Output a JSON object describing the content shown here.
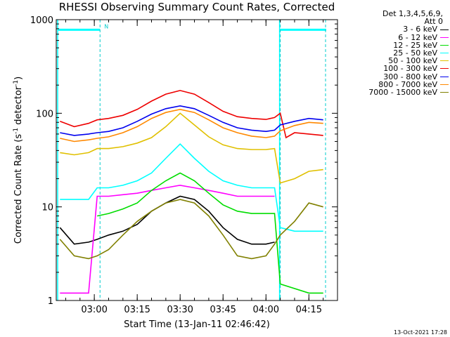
{
  "title": "RHESSI Observing Summary Count Rates, Corrected",
  "timestamp": "13-Oct-2021 17:28",
  "legend": {
    "header_lines": [
      "Det 1,3,4,5,6,9,",
      "Att 0"
    ]
  },
  "chart_data": {
    "type": "line",
    "title": "RHESSI Observing Summary Count Rates, Corrected",
    "xlabel": "Start Time (13-Jan-11 02:46:42)",
    "ylabel_base": "Corrected Count Rate (s",
    "ylabel_sup1": "-1",
    "ylabel_mid": " detector",
    "ylabel_sup2": "-1",
    "ylabel_end": ")",
    "ylabel": "Corrected Count Rate (s^-1 detector^-1)",
    "yscale": "log",
    "xlim": [
      "02:46:42",
      "04:25:00"
    ],
    "ylim": [
      1,
      1000
    ],
    "x_ticks": [
      "03:00",
      "03:15",
      "03:30",
      "03:45",
      "04:00",
      "04:15"
    ],
    "y_ticks": [
      "1",
      "10",
      "100",
      "1000"
    ],
    "flag_bar_marker": "N",
    "series": [
      {
        "name": "3 - 6 keV",
        "color": "#000000",
        "points": [
          [
            "02:48",
            6
          ],
          [
            "02:53",
            4
          ],
          [
            "02:58",
            4.2
          ],
          [
            "03:01",
            4.5
          ],
          [
            "03:05",
            5
          ],
          [
            "03:10",
            5.5
          ],
          [
            "03:15",
            6.5
          ],
          [
            "03:20",
            9
          ],
          [
            "03:25",
            11
          ],
          [
            "03:30",
            13
          ],
          [
            "03:35",
            12
          ],
          [
            "03:40",
            9
          ],
          [
            "03:45",
            6
          ],
          [
            "03:50",
            4.5
          ],
          [
            "03:55",
            4
          ],
          [
            "04:00",
            4
          ],
          [
            "04:03",
            4.2
          ]
        ]
      },
      {
        "name": "6 - 12 keV",
        "color": "#ff00ff",
        "points": [
          [
            "02:48",
            1.2
          ],
          [
            "02:53",
            1.2
          ],
          [
            "02:58",
            1.2
          ],
          [
            "03:01",
            13
          ],
          [
            "03:05",
            13
          ],
          [
            "03:10",
            13.5
          ],
          [
            "03:15",
            14
          ],
          [
            "03:20",
            15
          ],
          [
            "03:25",
            16
          ],
          [
            "03:30",
            17
          ],
          [
            "03:35",
            16
          ],
          [
            "03:40",
            15
          ],
          [
            "03:45",
            14
          ],
          [
            "03:50",
            13
          ],
          [
            "03:55",
            13
          ],
          [
            "04:00",
            13
          ],
          [
            "04:03",
            13
          ]
        ]
      },
      {
        "name": "12 - 25 keV",
        "color": "#00dd00",
        "points": [
          [
            "03:01",
            8
          ],
          [
            "03:05",
            8.5
          ],
          [
            "03:10",
            9.5
          ],
          [
            "03:15",
            11
          ],
          [
            "03:20",
            15
          ],
          [
            "03:25",
            19
          ],
          [
            "03:30",
            23
          ],
          [
            "03:35",
            19
          ],
          [
            "03:40",
            14
          ],
          [
            "03:45",
            10.5
          ],
          [
            "03:50",
            9
          ],
          [
            "03:55",
            8.5
          ],
          [
            "04:00",
            8.5
          ],
          [
            "04:03",
            8.5
          ],
          [
            "04:05",
            1.5
          ],
          [
            "04:15",
            1.2
          ],
          [
            "04:20",
            1.2
          ]
        ]
      },
      {
        "name": "25 - 50 keV",
        "color": "#00ffff",
        "points": [
          [
            "02:48",
            12
          ],
          [
            "02:53",
            12
          ],
          [
            "02:58",
            12
          ],
          [
            "03:01",
            16
          ],
          [
            "03:05",
            16
          ],
          [
            "03:10",
            17
          ],
          [
            "03:15",
            19
          ],
          [
            "03:20",
            23
          ],
          [
            "03:25",
            33
          ],
          [
            "03:30",
            47
          ],
          [
            "03:35",
            33
          ],
          [
            "03:40",
            24
          ],
          [
            "03:45",
            19
          ],
          [
            "03:50",
            17
          ],
          [
            "03:55",
            16
          ],
          [
            "04:00",
            16
          ],
          [
            "04:03",
            16
          ],
          [
            "04:05",
            6
          ],
          [
            "04:10",
            5.5
          ],
          [
            "04:15",
            5.5
          ],
          [
            "04:20",
            5.5
          ]
        ]
      },
      {
        "name": "50 - 100 keV",
        "color": "#e0c000",
        "points": [
          [
            "02:48",
            38
          ],
          [
            "02:53",
            36
          ],
          [
            "02:58",
            38
          ],
          [
            "03:01",
            42
          ],
          [
            "03:05",
            42
          ],
          [
            "03:10",
            44
          ],
          [
            "03:15",
            48
          ],
          [
            "03:20",
            55
          ],
          [
            "03:25",
            72
          ],
          [
            "03:30",
            100
          ],
          [
            "03:35",
            75
          ],
          [
            "03:40",
            56
          ],
          [
            "03:45",
            46
          ],
          [
            "03:50",
            42
          ],
          [
            "03:55",
            41
          ],
          [
            "04:00",
            41
          ],
          [
            "04:03",
            42
          ],
          [
            "04:05",
            18
          ],
          [
            "04:10",
            20
          ],
          [
            "04:15",
            24
          ],
          [
            "04:20",
            25
          ]
        ]
      },
      {
        "name": "100 - 300 keV",
        "color": "#ee0000",
        "points": [
          [
            "02:48",
            82
          ],
          [
            "02:53",
            72
          ],
          [
            "02:58",
            78
          ],
          [
            "03:01",
            85
          ],
          [
            "03:05",
            88
          ],
          [
            "03:10",
            95
          ],
          [
            "03:15",
            110
          ],
          [
            "03:20",
            135
          ],
          [
            "03:25",
            160
          ],
          [
            "03:30",
            175
          ],
          [
            "03:35",
            160
          ],
          [
            "03:40",
            130
          ],
          [
            "03:45",
            105
          ],
          [
            "03:50",
            92
          ],
          [
            "03:55",
            88
          ],
          [
            "04:00",
            86
          ],
          [
            "04:03",
            90
          ],
          [
            "04:05",
            100
          ],
          [
            "04:07",
            55
          ],
          [
            "04:10",
            62
          ],
          [
            "04:15",
            60
          ],
          [
            "04:20",
            58
          ]
        ]
      },
      {
        "name": "300 - 800 keV",
        "color": "#0000ee",
        "points": [
          [
            "02:48",
            62
          ],
          [
            "02:53",
            58
          ],
          [
            "02:58",
            60
          ],
          [
            "03:01",
            62
          ],
          [
            "03:05",
            64
          ],
          [
            "03:10",
            70
          ],
          [
            "03:15",
            82
          ],
          [
            "03:20",
            98
          ],
          [
            "03:25",
            112
          ],
          [
            "03:30",
            120
          ],
          [
            "03:35",
            112
          ],
          [
            "03:40",
            95
          ],
          [
            "03:45",
            80
          ],
          [
            "03:50",
            70
          ],
          [
            "03:55",
            66
          ],
          [
            "04:00",
            64
          ],
          [
            "04:03",
            66
          ],
          [
            "04:05",
            75
          ],
          [
            "04:10",
            82
          ],
          [
            "04:15",
            88
          ],
          [
            "04:20",
            85
          ]
        ]
      },
      {
        "name": "800 - 7000 keV",
        "color": "#ff8800",
        "points": [
          [
            "02:48",
            54
          ],
          [
            "02:53",
            50
          ],
          [
            "02:58",
            52
          ],
          [
            "03:01",
            54
          ],
          [
            "03:05",
            56
          ],
          [
            "03:10",
            62
          ],
          [
            "03:15",
            72
          ],
          [
            "03:20",
            88
          ],
          [
            "03:25",
            102
          ],
          [
            "03:30",
            110
          ],
          [
            "03:35",
            102
          ],
          [
            "03:40",
            85
          ],
          [
            "03:45",
            70
          ],
          [
            "03:50",
            62
          ],
          [
            "03:55",
            57
          ],
          [
            "04:00",
            55
          ],
          [
            "04:03",
            57
          ],
          [
            "04:05",
            65
          ],
          [
            "04:10",
            74
          ],
          [
            "04:15",
            80
          ],
          [
            "04:20",
            78
          ]
        ]
      },
      {
        "name": "7000 - 15000 keV",
        "color": "#808000",
        "points": [
          [
            "02:48",
            4.5
          ],
          [
            "02:53",
            3
          ],
          [
            "02:58",
            2.8
          ],
          [
            "03:01",
            3
          ],
          [
            "03:05",
            3.5
          ],
          [
            "03:10",
            5
          ],
          [
            "03:15",
            7
          ],
          [
            "03:20",
            9
          ],
          [
            "03:25",
            11
          ],
          [
            "03:30",
            12
          ],
          [
            "03:35",
            11
          ],
          [
            "03:40",
            8
          ],
          [
            "03:45",
            5
          ],
          [
            "03:50",
            3
          ],
          [
            "03:55",
            2.8
          ],
          [
            "04:00",
            3
          ],
          [
            "04:03",
            4
          ],
          [
            "04:05",
            5
          ],
          [
            "04:10",
            7
          ],
          [
            "04:15",
            11
          ],
          [
            "04:20",
            10
          ]
        ]
      }
    ],
    "attenuator_lines": [
      "03:02",
      "04:05"
    ]
  }
}
